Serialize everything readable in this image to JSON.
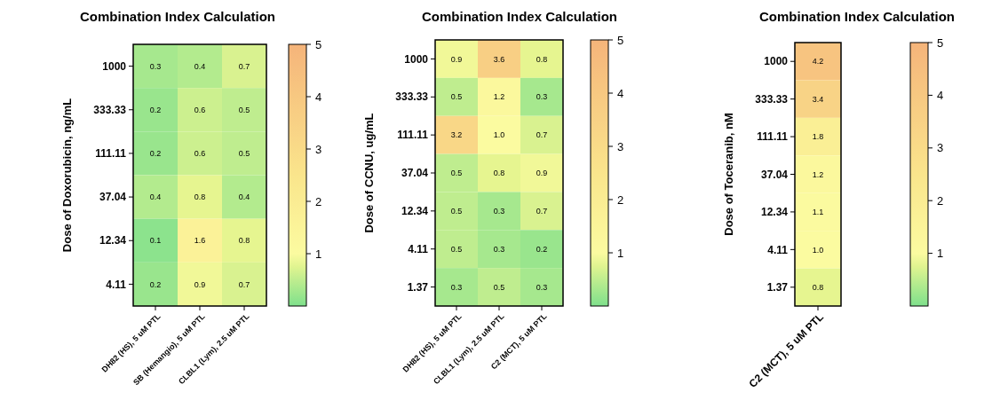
{
  "chart_data": [
    {
      "type": "heatmap",
      "title": "Combination Index Calculation",
      "ylabel": "Dose of Doxorubicin, ng/mL",
      "categories": [
        "DH82 (HS), 5 uM PTL",
        "SB (Hemangio), 5 uM PTL",
        "CLBL1 (Lym), 2.5 uM PTL"
      ],
      "y_categories": [
        "1000",
        "333.33",
        "111.11",
        "37.04",
        "12.34",
        "4.11"
      ],
      "cells": [
        [
          0.3,
          0.4,
          0.7
        ],
        [
          0.2,
          0.6,
          0.5
        ],
        [
          0.2,
          0.6,
          0.5
        ],
        [
          0.4,
          0.8,
          0.4
        ],
        [
          0.1,
          1.6,
          0.8
        ],
        [
          0.2,
          0.9,
          0.7
        ]
      ],
      "cell_labels": [
        [
          "0.3",
          "0.4",
          "0.7"
        ],
        [
          "0.2",
          "0.6",
          "0.5"
        ],
        [
          "0.2",
          "0.6",
          "0.5"
        ],
        [
          "0.4",
          "0.8",
          "0.4"
        ],
        [
          "0.1",
          "1.6",
          "0.8"
        ],
        [
          "0.2",
          "0.9",
          "0.7"
        ]
      ],
      "clim": [
        0,
        5
      ],
      "cticks": [
        1,
        2,
        3,
        4,
        5
      ]
    },
    {
      "type": "heatmap",
      "title": "Combination Index Calculation",
      "ylabel": "Dose of CCNU, ug/mL",
      "categories": [
        "DH82 (HS), 5 uM PTL",
        "CLBL1 (Lym), 2.5 uM PTL",
        "C2 (MCT), 5 uM PTL"
      ],
      "y_categories": [
        "1000",
        "333.33",
        "111.11",
        "37.04",
        "12.34",
        "4.11",
        "1.37"
      ],
      "cells": [
        [
          0.9,
          3.6,
          0.8
        ],
        [
          0.5,
          1.2,
          0.3
        ],
        [
          3.2,
          1.0,
          0.7
        ],
        [
          0.5,
          0.8,
          0.9
        ],
        [
          0.5,
          0.3,
          0.7
        ],
        [
          0.5,
          0.3,
          0.2
        ],
        [
          0.3,
          0.5,
          0.3
        ]
      ],
      "cell_labels": [
        [
          "0.9",
          "3.6",
          "0.8"
        ],
        [
          "0.5",
          "1.2",
          "0.3"
        ],
        [
          "3.2",
          "1.0",
          "0.7"
        ],
        [
          "0.5",
          "0.8",
          "0.9"
        ],
        [
          "0.5",
          "0.3",
          "0.7"
        ],
        [
          "0.5",
          "0.3",
          "0.2"
        ],
        [
          "0.3",
          "0.5",
          "0.3"
        ]
      ],
      "clim": [
        0,
        5
      ],
      "cticks": [
        1,
        2,
        3,
        4,
        5
      ]
    },
    {
      "type": "heatmap",
      "title": "Combination Index Calculation",
      "ylabel": "Dose of Toceranib, nM",
      "categories": [
        "C2 (MCT), 5 uM PTL"
      ],
      "y_categories": [
        "1000",
        "333.33",
        "111.11",
        "37.04",
        "12.34",
        "4.11",
        "1.37"
      ],
      "cells": [
        [
          4.2
        ],
        [
          3.4
        ],
        [
          1.8
        ],
        [
          1.2
        ],
        [
          1.1
        ],
        [
          1.0
        ],
        [
          0.8
        ]
      ],
      "cell_labels": [
        [
          "4.2"
        ],
        [
          "3.4"
        ],
        [
          "1.8"
        ],
        [
          "1.2"
        ],
        [
          "1.1"
        ],
        [
          "1.0"
        ],
        [
          "0.8"
        ]
      ],
      "clim": [
        0,
        5
      ],
      "cticks": [
        1,
        2,
        3,
        4,
        5
      ]
    }
  ]
}
